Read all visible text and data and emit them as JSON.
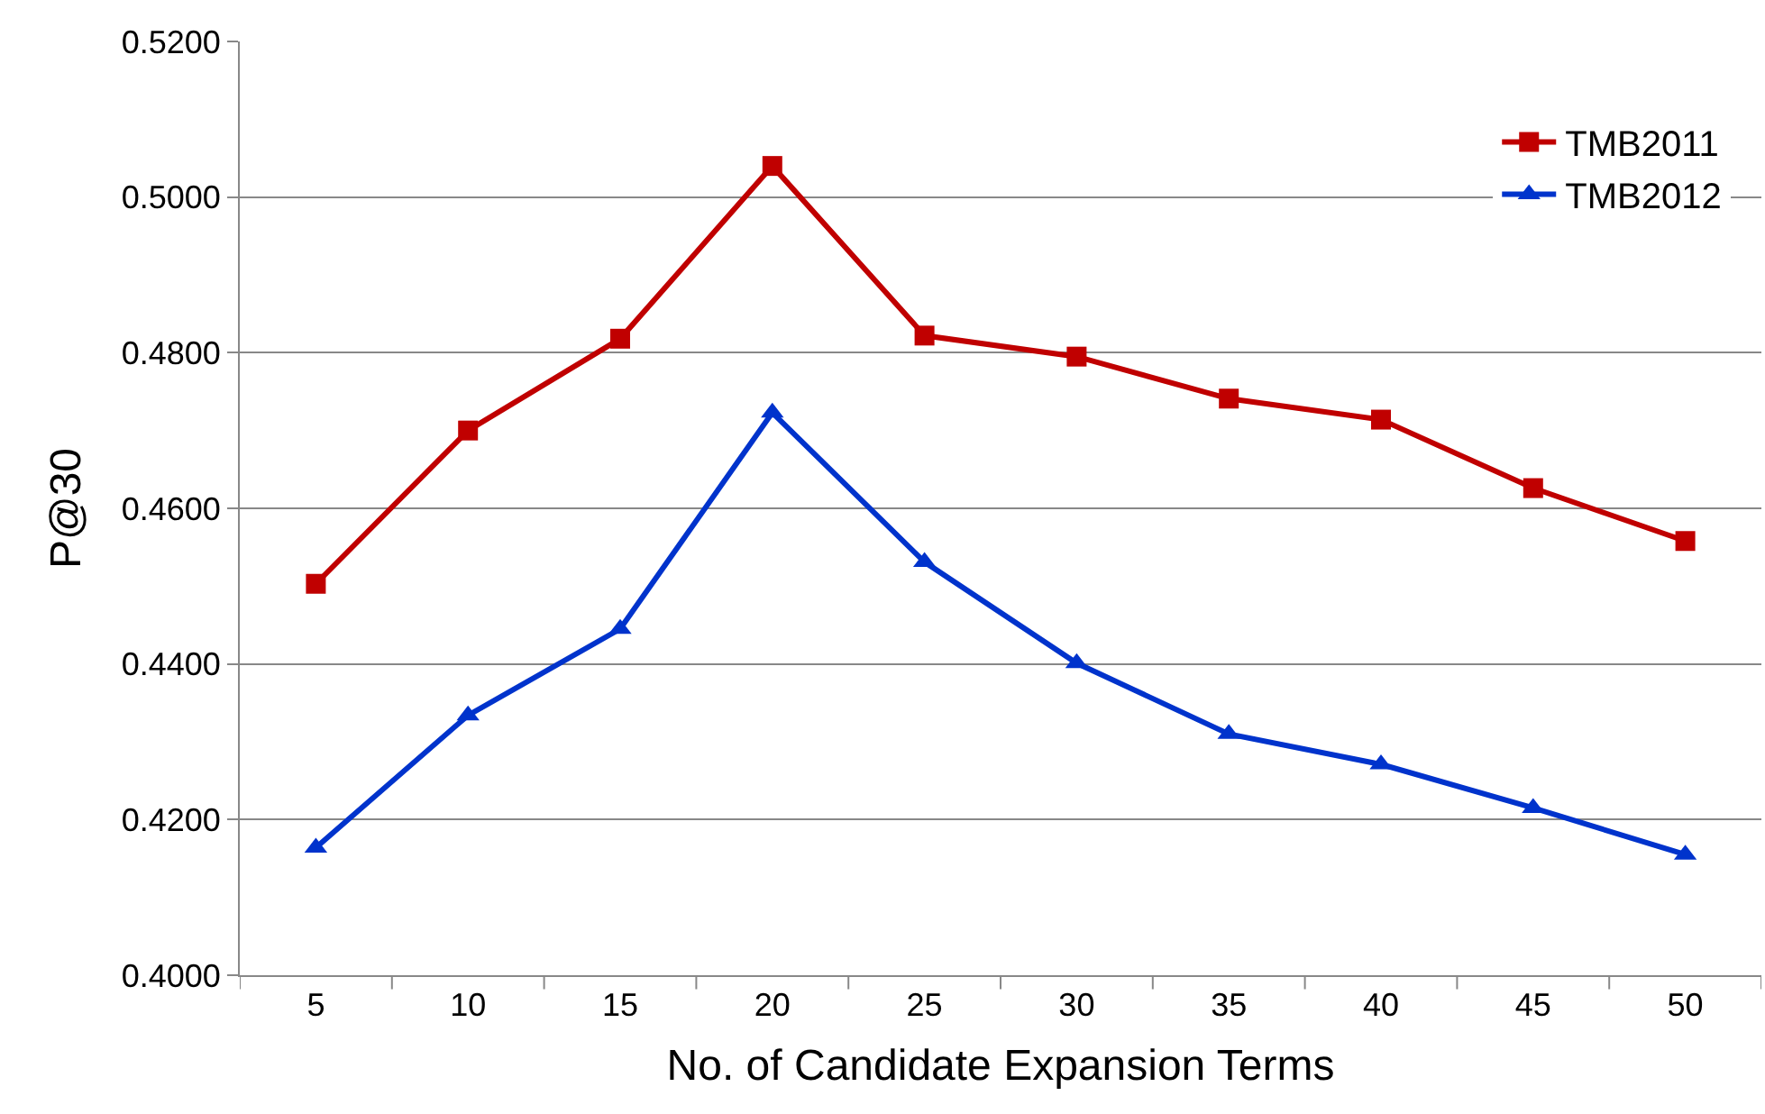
{
  "chart_data": {
    "type": "line",
    "xlabel": "No. of Candidate Expansion Terms",
    "ylabel": "P@30",
    "categories": [
      "5",
      "10",
      "15",
      "20",
      "25",
      "30",
      "35",
      "40",
      "45",
      "50"
    ],
    "series": [
      {
        "name": "TMB2011",
        "color": "#c00000",
        "marker": "square",
        "values": [
          0.4503,
          0.47,
          0.4818,
          0.504,
          0.4822,
          0.4795,
          0.4741,
          0.4714,
          0.4626,
          0.4558
        ]
      },
      {
        "name": "TMB2012",
        "color": "#0033cc",
        "marker": "triangle",
        "values": [
          0.4164,
          0.4334,
          0.4445,
          0.4723,
          0.4531,
          0.4401,
          0.431,
          0.4271,
          0.4215,
          0.4155
        ]
      }
    ],
    "ylim": [
      0.4,
      0.52
    ],
    "yticks": [
      {
        "value": 0.4,
        "label": "0.4000"
      },
      {
        "value": 0.42,
        "label": "0.4200"
      },
      {
        "value": 0.44,
        "label": "0.4400"
      },
      {
        "value": 0.46,
        "label": "0.4600"
      },
      {
        "value": 0.48,
        "label": "0.4800"
      },
      {
        "value": 0.5,
        "label": "0.5000"
      },
      {
        "value": 0.52,
        "label": "0.5200"
      }
    ],
    "grid": "y",
    "legend": "top right",
    "line_style": "solid"
  }
}
